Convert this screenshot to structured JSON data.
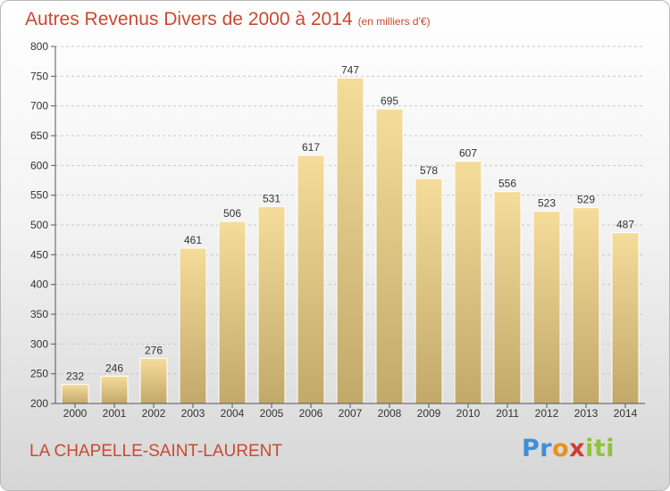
{
  "header": {
    "title": "Autres Revenus Divers de 2000 à 2014",
    "unit": "(en milliers d'€)"
  },
  "footer": {
    "commune": "LA CHAPELLE-SAINT-LAURENT",
    "logo_parts": [
      "Pr",
      "o",
      "x",
      "iti"
    ]
  },
  "colors": {
    "title": "#c94a2e",
    "bar_top": "#f5dc9a",
    "bar_bottom": "#c2a96a"
  },
  "chart_data": {
    "type": "bar",
    "title": "Autres Revenus Divers de 2000 à 2014",
    "xlabel": "",
    "ylabel": "",
    "categories": [
      "2000",
      "2001",
      "2002",
      "2003",
      "2004",
      "2005",
      "2006",
      "2007",
      "2008",
      "2009",
      "2010",
      "2011",
      "2012",
      "2013",
      "2014"
    ],
    "values": [
      232,
      246,
      276,
      461,
      506,
      531,
      617,
      747,
      695,
      578,
      607,
      556,
      523,
      529,
      487
    ],
    "ylim": [
      200,
      800
    ],
    "yticks": [
      200,
      250,
      300,
      350,
      400,
      450,
      500,
      550,
      600,
      650,
      700,
      750,
      800
    ],
    "grid": true,
    "data_labels": true
  }
}
